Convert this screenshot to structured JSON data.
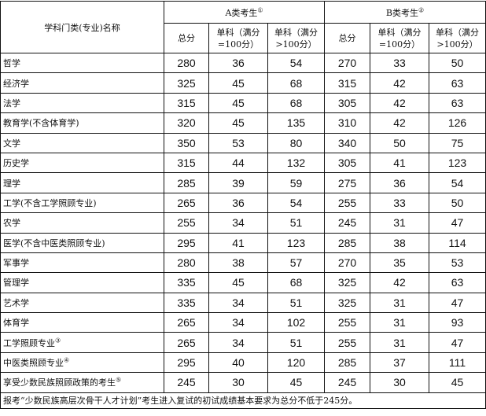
{
  "header": {
    "name_col": "学科门类(专业)名称",
    "group_a": "A类考生",
    "group_a_note": "①",
    "group_b": "B类考生",
    "group_b_note": "②",
    "sub_cols": [
      "总分",
      "单科（满分=100分）",
      "单科（满分>100分）"
    ]
  },
  "rows": [
    {
      "name": "哲学",
      "note": "",
      "a": [
        280,
        36,
        54
      ],
      "b": [
        270,
        33,
        50
      ]
    },
    {
      "name": "经济学",
      "note": "",
      "a": [
        325,
        45,
        68
      ],
      "b": [
        315,
        42,
        63
      ]
    },
    {
      "name": "法学",
      "note": "",
      "a": [
        315,
        45,
        68
      ],
      "b": [
        305,
        42,
        63
      ]
    },
    {
      "name": "教育学(不含体育学)",
      "note": "",
      "a": [
        320,
        45,
        135
      ],
      "b": [
        310,
        42,
        126
      ]
    },
    {
      "name": "文学",
      "note": "",
      "a": [
        350,
        53,
        80
      ],
      "b": [
        340,
        50,
        75
      ]
    },
    {
      "name": "历史学",
      "note": "",
      "a": [
        315,
        44,
        132
      ],
      "b": [
        305,
        41,
        123
      ]
    },
    {
      "name": "理学",
      "note": "",
      "a": [
        285,
        39,
        59
      ],
      "b": [
        275,
        36,
        54
      ]
    },
    {
      "name": "工学(不含工学照顾专业)",
      "note": "",
      "a": [
        265,
        36,
        54
      ],
      "b": [
        255,
        33,
        50
      ]
    },
    {
      "name": "农学",
      "note": "",
      "a": [
        255,
        34,
        51
      ],
      "b": [
        245,
        31,
        47
      ]
    },
    {
      "name": "医学(不含中医类照顾专业)",
      "note": "",
      "a": [
        295,
        41,
        123
      ],
      "b": [
        285,
        38,
        114
      ]
    },
    {
      "name": "军事学",
      "note": "",
      "a": [
        280,
        38,
        57
      ],
      "b": [
        270,
        35,
        53
      ]
    },
    {
      "name": "管理学",
      "note": "",
      "a": [
        335,
        45,
        68
      ],
      "b": [
        325,
        42,
        63
      ]
    },
    {
      "name": "艺术学",
      "note": "",
      "a": [
        335,
        34,
        51
      ],
      "b": [
        325,
        31,
        47
      ]
    },
    {
      "name": "体育学",
      "note": "",
      "a": [
        265,
        34,
        102
      ],
      "b": [
        255,
        31,
        93
      ]
    },
    {
      "name": "工学照顾专业",
      "note": "③",
      "a": [
        265,
        34,
        51
      ],
      "b": [
        255,
        31,
        47
      ]
    },
    {
      "name": "中医类照顾专业",
      "note": "④",
      "a": [
        295,
        40,
        120
      ],
      "b": [
        285,
        37,
        111
      ]
    },
    {
      "name": "享受少数民族照顾政策的考生",
      "note": "⑤",
      "a": [
        245,
        30,
        45
      ],
      "b": [
        245,
        30,
        45
      ]
    }
  ],
  "footer": "报考“少数民族高层次骨干人才计划”考生进入复试的初试成绩基本要求为总分不低于245分。"
}
